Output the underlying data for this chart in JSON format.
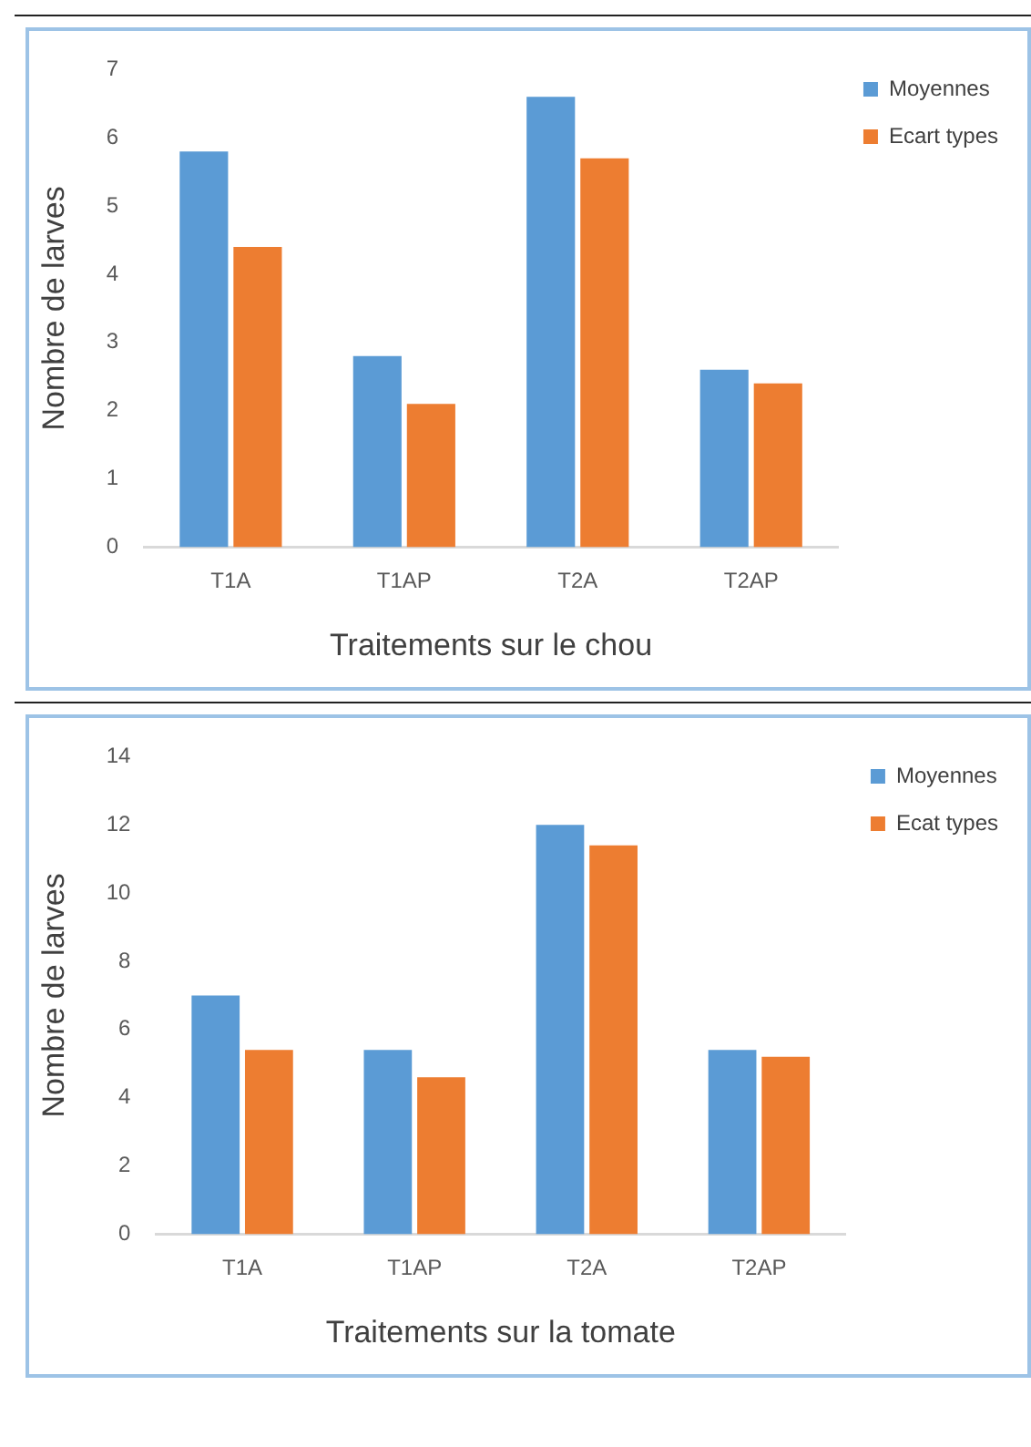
{
  "chart_data": [
    {
      "type": "bar",
      "xlabel": "Traitements sur le chou",
      "ylabel": "Nombre de larves",
      "categories": [
        "T1A",
        "T1AP",
        "T2A",
        "T2AP"
      ],
      "series": [
        {
          "name": "Moyennes",
          "color": "#5b9bd5",
          "values": [
            5.8,
            2.8,
            6.6,
            2.6
          ]
        },
        {
          "name": "Ecart types",
          "color": "#ed7d31",
          "values": [
            4.4,
            2.1,
            5.7,
            2.4
          ]
        }
      ],
      "ylim": [
        0,
        7
      ],
      "yticks": [
        0,
        1,
        2,
        3,
        4,
        5,
        6,
        7
      ],
      "grid": false,
      "legend": "top right"
    },
    {
      "type": "bar",
      "xlabel": "Traitements sur la tomate",
      "ylabel": "Nombre de larves",
      "categories": [
        "T1A",
        "T1AP",
        "T2A",
        "T2AP"
      ],
      "series": [
        {
          "name": "Moyennes",
          "color": "#5b9bd5",
          "values": [
            7.0,
            5.4,
            12.0,
            5.4
          ]
        },
        {
          "name": "Ecat types",
          "color": "#ed7d31",
          "values": [
            5.4,
            4.6,
            11.4,
            5.2
          ]
        }
      ],
      "ylim": [
        0,
        14
      ],
      "yticks": [
        0,
        2,
        4,
        6,
        8,
        10,
        12,
        14
      ],
      "grid": false,
      "legend": "top right"
    }
  ]
}
